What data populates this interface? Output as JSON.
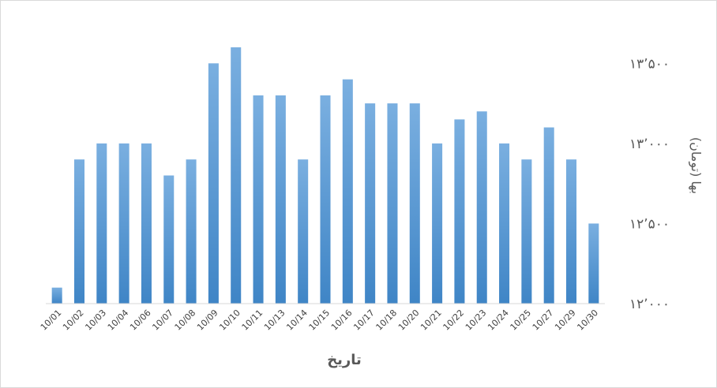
{
  "chart_data": {
    "type": "bar",
    "categories": [
      "10/01",
      "10/02",
      "10/03",
      "10/04",
      "10/06",
      "10/07",
      "10/08",
      "10/09",
      "10/10",
      "10/11",
      "10/13",
      "10/14",
      "10/15",
      "10/16",
      "10/17",
      "10/18",
      "10/20",
      "10/21",
      "10/22",
      "10/23",
      "10/24",
      "10/25",
      "10/27",
      "10/29",
      "10/30"
    ],
    "values": [
      12100,
      12900,
      13000,
      13000,
      13000,
      12800,
      12900,
      13500,
      13600,
      13300,
      13300,
      12900,
      13300,
      13400,
      13250,
      13250,
      13250,
      13000,
      13150,
      13200,
      13000,
      12900,
      13100,
      12900,
      12500
    ],
    "xlabel": "تاریخ",
    "ylabel": "بها (تومان)",
    "ylim": [
      12000,
      13600
    ],
    "yticks": [
      {
        "value": 12000,
        "label": "۱۲٬۰۰۰"
      },
      {
        "value": 12500,
        "label": "۱۲٬۵۰۰"
      },
      {
        "value": 13000,
        "label": "۱۳٬۰۰۰"
      },
      {
        "value": 13500,
        "label": "۱۳٬۵۰۰"
      }
    ],
    "y_axis_side": "right",
    "grid": false,
    "bar_color": "#5b9bd5"
  }
}
